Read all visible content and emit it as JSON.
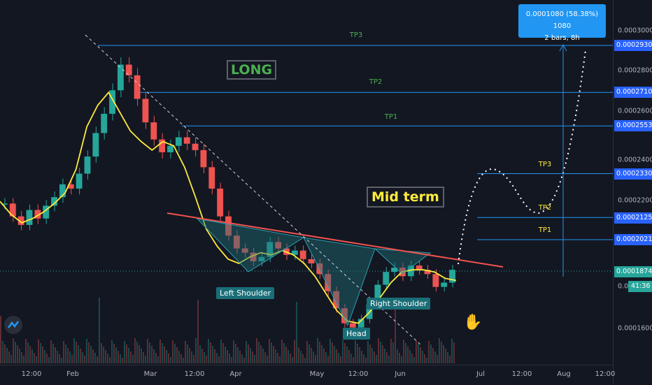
{
  "chart_data": {
    "type": "candlestick",
    "price_axis": {
      "ticks": [
        "0.0003000",
        "0.0002800",
        "0.0002600",
        "0.0002400",
        "0.0002200",
        "0.0001600"
      ],
      "tick_values": [
        0.0003,
        0.00028,
        0.00026,
        0.00024,
        0.00022,
        0.00016
      ],
      "tags": [
        {
          "value": 0.000293,
          "label": "0.0002930"
        },
        {
          "value": 0.000271,
          "label": "0.0002710"
        },
        {
          "value": 0.0002553,
          "label": "0.0002553"
        },
        {
          "value": 0.000233,
          "label": "0.0002330"
        },
        {
          "value": 0.0002125,
          "label": "0.0002125"
        },
        {
          "value": 0.0002021,
          "label": "0.0002021"
        }
      ],
      "last_price": {
        "value": 0.0001874,
        "label": "0.0001874"
      },
      "countdown_prefix": "0.00",
      "countdown": "41:36"
    },
    "time_axis": [
      "12:00",
      "Feb",
      "Mar",
      "12:00",
      "Apr",
      "May",
      "12:00",
      "Jun",
      "Jul",
      "12:00",
      "Aug",
      "12:00"
    ],
    "targets_long": [
      {
        "label": "TP3",
        "value": 0.000293
      },
      {
        "label": "TP2",
        "value": 0.000271
      },
      {
        "label": "TP1",
        "value": 0.0002553
      }
    ],
    "targets_mid": [
      {
        "label": "TP3",
        "value": 0.000233
      },
      {
        "label": "TP2",
        "value": 0.0002125
      },
      {
        "label": "TP1",
        "value": 0.0002021
      }
    ],
    "close_series": [
      0.000219,
      0.000213,
      0.000209,
      0.000216,
      0.000212,
      0.000218,
      0.000222,
      0.000228,
      0.000226,
      0.000233,
      0.000241,
      0.000252,
      0.000261,
      0.000272,
      0.000284,
      0.000279,
      0.000268,
      0.000257,
      0.000249,
      0.000243,
      0.000246,
      0.00025,
      0.000247,
      0.000244,
      0.000236,
      0.000226,
      0.000213,
      0.000204,
      0.000198,
      0.000196,
      0.000192,
      0.000194,
      0.000201,
      0.000198,
      0.000195,
      0.000197,
      0.000193,
      0.000191,
      0.000186,
      0.000178,
      0.00017,
      0.000163,
      0.000161,
      0.000165,
      0.000172,
      0.000181,
      0.000187,
      0.000189,
      0.000185,
      0.00019,
      0.000188,
      0.000186,
      0.00018,
      0.000182,
      0.000188
    ],
    "ma_series": [
      0.00022,
      0.000214,
      0.00021,
      0.000212,
      0.000215,
      0.000219,
      0.000224,
      0.000235,
      0.000255,
      0.000265,
      0.000271,
      0.000262,
      0.000253,
      0.000248,
      0.000244,
      0.000248,
      0.000246,
      0.000236,
      0.000222,
      0.000207,
      0.000199,
      0.000193,
      0.000191,
      0.000194,
      0.000196,
      0.000195,
      0.000197,
      0.000195,
      0.000191,
      0.000185,
      0.000177,
      0.000169,
      0.000164,
      0.000163,
      0.000168,
      0.000175,
      0.000182,
      0.000187,
      0.000188,
      0.000188,
      0.000187,
      0.000184,
      0.000183
    ]
  },
  "annotations": {
    "long_label": "LONG",
    "mid_label": "Mid term",
    "left_shoulder": "Left Shoulder",
    "head": "Head",
    "right_shoulder": "Right Shoulder",
    "measure_line1": "0.0001080 (58.38%) 1080",
    "measure_line2": "2 bars, 8h"
  },
  "colors": {
    "background": "#131722",
    "up": "#26a69a",
    "down": "#ef5350",
    "ma": "#ffeb3b",
    "target_line": "#2196f3",
    "neckline": "#f0524f",
    "pattern_fill": "#1e6f78"
  },
  "icons": {
    "logo": "tradingview-logo-icon",
    "hand": "thumbs-up-icon"
  }
}
